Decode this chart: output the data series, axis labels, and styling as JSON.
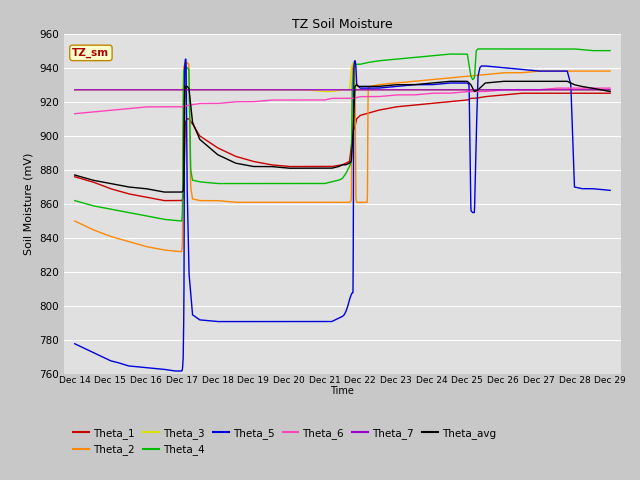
{
  "title": "TZ Soil Moisture",
  "ylabel": "Soil Moisture (mV)",
  "xlabel": "Time",
  "label_box": "TZ_sm",
  "ylim": [
    760,
    960
  ],
  "yticks": [
    760,
    780,
    800,
    820,
    840,
    860,
    880,
    900,
    920,
    940,
    960
  ],
  "fig_color": "#c8c8c8",
  "plot_bg_color": "#e0e0e0",
  "xticklabels": [
    "Dec 14",
    "Dec 15",
    "Dec 16",
    "Dec 17",
    "Dec 18",
    "Dec 19",
    "Dec 20",
    "Dec 21",
    "Dec 22",
    "Dec 23",
    "Dec 24",
    "Dec 25",
    "Dec 26",
    "Dec 27",
    "Dec 28",
    "Dec 29"
  ],
  "series_colors": {
    "Theta_1": "#cc0000",
    "Theta_2": "#ff8800",
    "Theta_3": "#dddd00",
    "Theta_4": "#00bb00",
    "Theta_5": "#0000dd",
    "Theta_6": "#ff44bb",
    "Theta_7": "#9900cc",
    "Theta_avg": "#000000"
  }
}
